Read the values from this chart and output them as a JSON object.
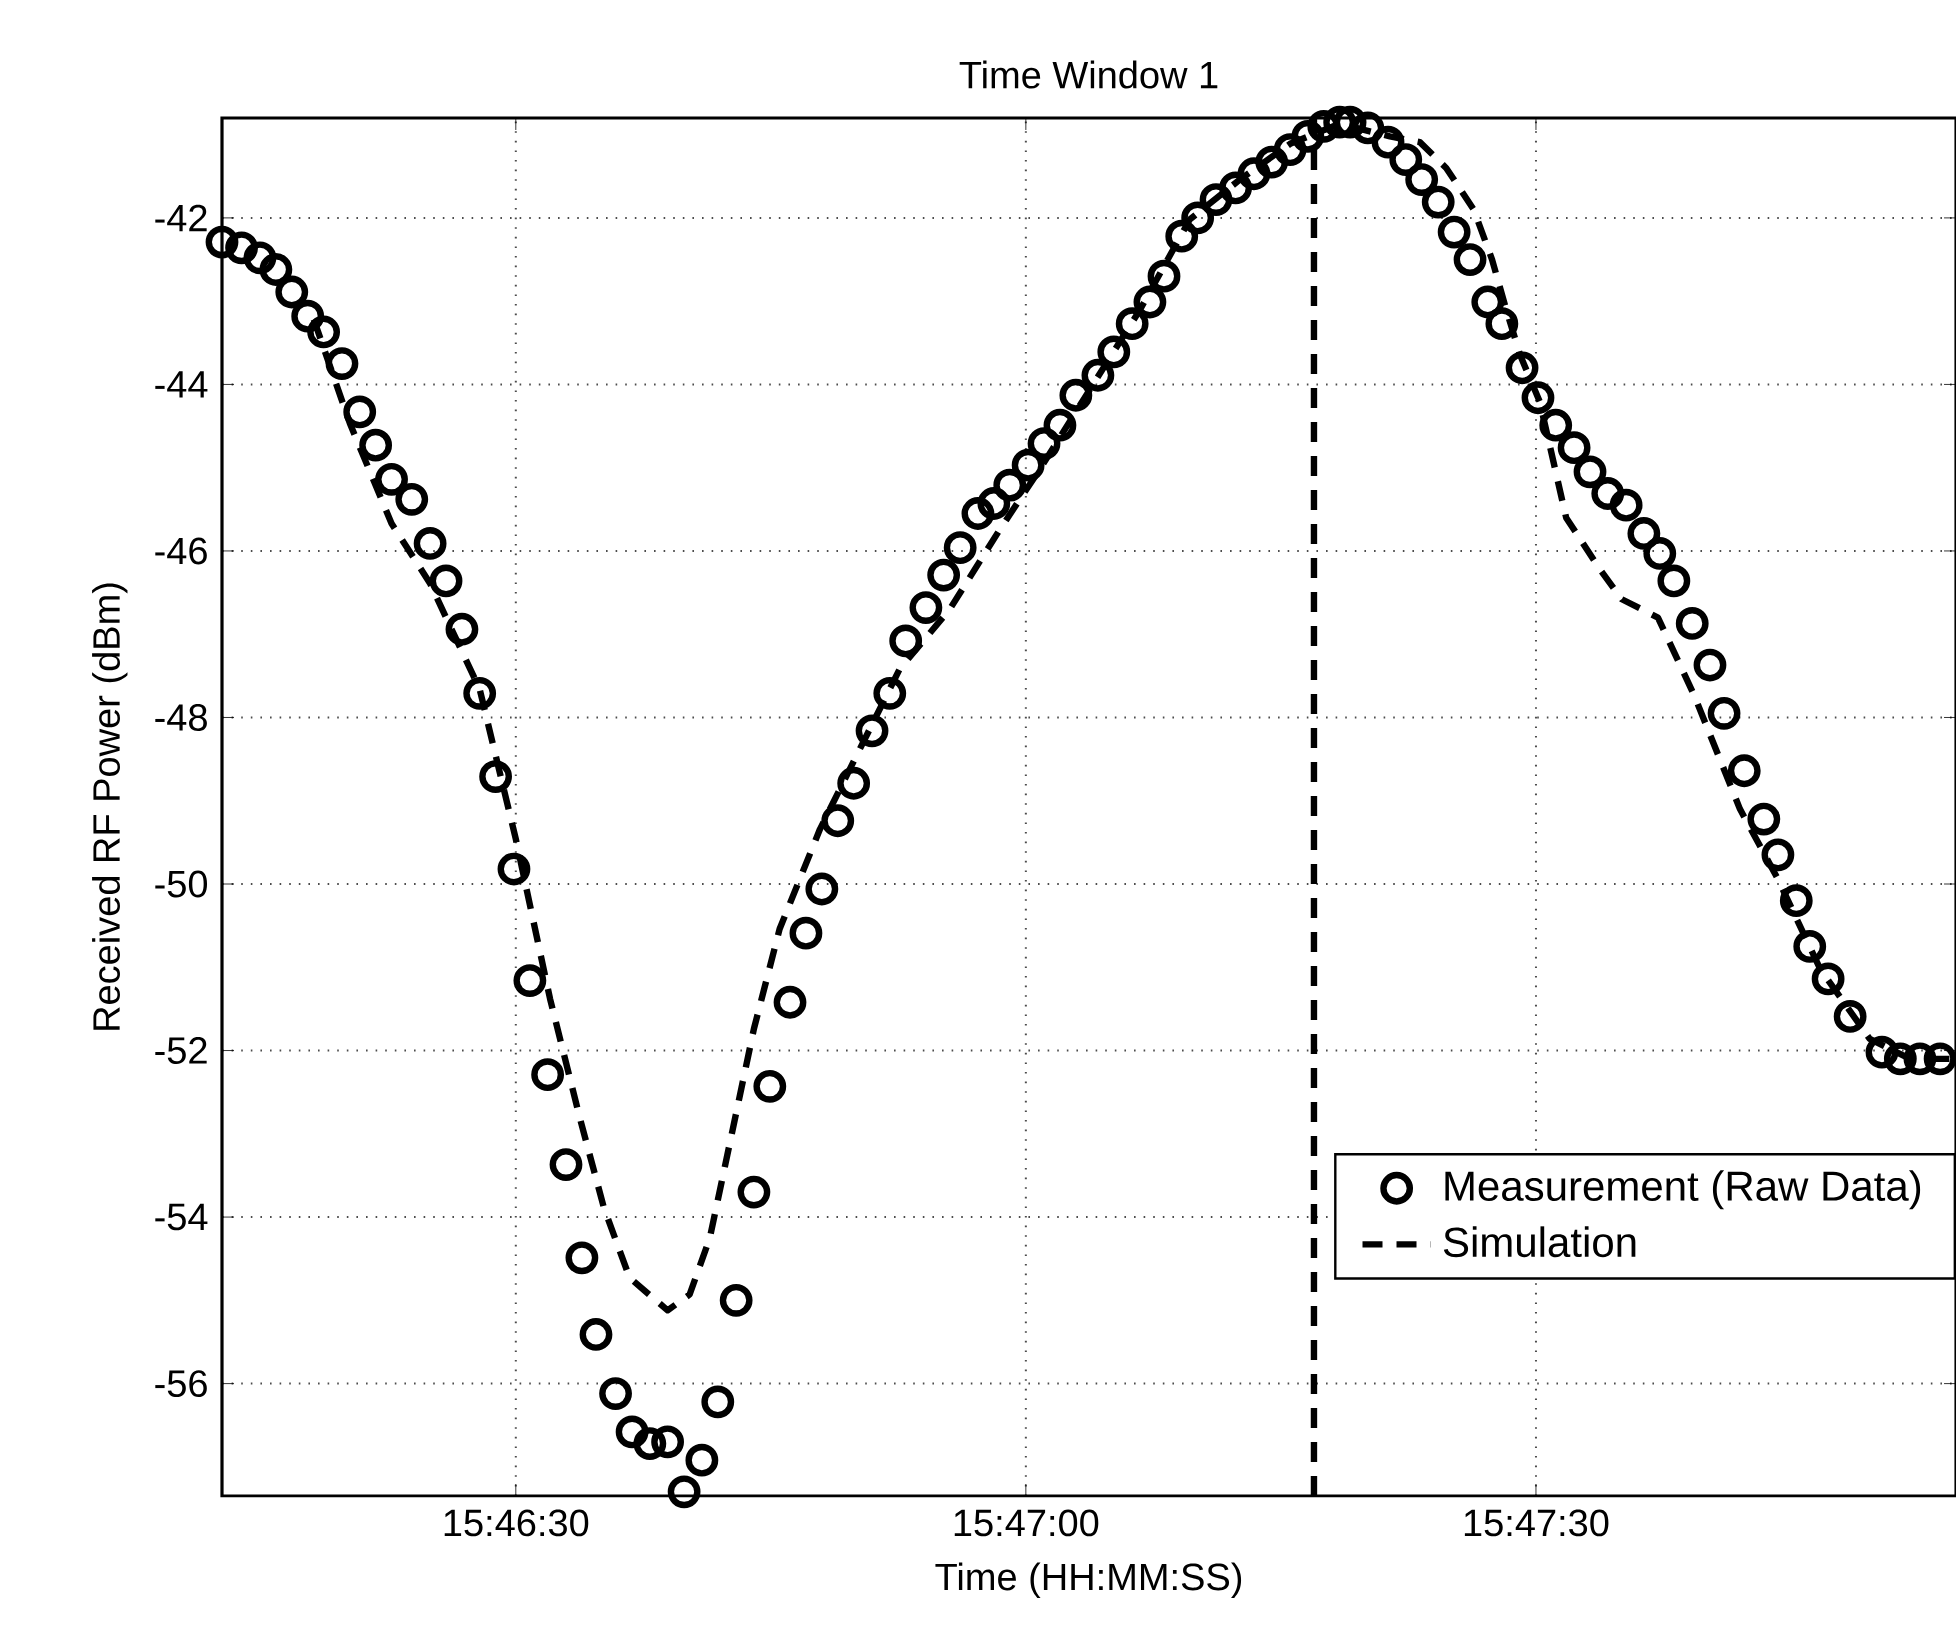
{
  "chart_data": {
    "type": "scatter",
    "title": "Time Window 1",
    "xlabel": "Time (HH:MM:SS)",
    "ylabel": "Received RF Power (dBm)",
    "xlim": [
      15.7702,
      15.79853
    ],
    "ylim": [
      -57.35,
      -40.8
    ],
    "xticks": [
      {
        "value": 15.775,
        "label": "15:46:30"
      },
      {
        "value": 15.783333,
        "label": "15:47:00"
      },
      {
        "value": 15.791667,
        "label": "15:47:30"
      }
    ],
    "yticks": [
      -56,
      -54,
      -52,
      -50,
      -48,
      -46,
      -44,
      -42
    ],
    "grid": true,
    "legend": "bottom right",
    "ref_lines": [
      {
        "axis": "x",
        "value": 15.78804,
        "color": "#000000",
        "line_style": "dashed"
      }
    ],
    "series": [
      {
        "name": "Measurement (Raw Data)",
        "marker": "circle",
        "color": "#000000",
        "x": [
          15.7702,
          15.77052,
          15.77082,
          15.77108,
          15.77134,
          15.7716,
          15.77186,
          15.77216,
          15.77245,
          15.77271,
          15.77297,
          15.7733,
          15.7736,
          15.77386,
          15.77412,
          15.77441,
          15.77467,
          15.77497,
          15.77523,
          15.77552,
          15.77582,
          15.77608,
          15.77631,
          15.77663,
          15.7769,
          15.77719,
          15.77748,
          15.77775,
          15.77804,
          15.7783,
          15.7786,
          15.77889,
          15.77915,
          15.77948,
          15.77974,
          15.78,
          15.78026,
          15.78052,
          15.78082,
          15.78111,
          15.78137,
          15.7817,
          15.78199,
          15.78226,
          15.78255,
          15.78281,
          15.78307,
          15.78337,
          15.78363,
          15.78389,
          15.78415,
          15.78451,
          15.78477,
          15.78507,
          15.78536,
          15.78559,
          15.78588,
          15.78614,
          15.78644,
          15.78676,
          15.78706,
          15.78735,
          15.78765,
          15.78794,
          15.7882,
          15.78846,
          15.78863,
          15.78892,
          15.78925,
          15.78954,
          15.7898,
          15.79007,
          15.79033,
          15.79059,
          15.79088,
          15.79111,
          15.79144,
          15.7917,
          15.79199,
          15.79229,
          15.79255,
          15.79284,
          15.79314,
          15.79343,
          15.79369,
          15.79392,
          15.79422,
          15.79451,
          15.79474,
          15.79507,
          15.79539,
          15.79562,
          15.79592,
          15.79614,
          15.79644,
          15.7968,
          15.79732,
          15.79762,
          15.79794,
          15.79827
        ],
        "values": [
          -42.29,
          -42.36,
          -42.48,
          -42.62,
          -42.89,
          -43.18,
          -43.37,
          -43.75,
          -44.33,
          -44.73,
          -45.14,
          -45.38,
          -45.91,
          -46.36,
          -46.94,
          -47.71,
          -48.71,
          -49.82,
          -51.16,
          -52.29,
          -53.37,
          -54.49,
          -55.41,
          -56.12,
          -56.58,
          -56.72,
          -56.7,
          -57.3,
          -56.92,
          -56.22,
          -55.0,
          -53.7,
          -52.43,
          -51.42,
          -50.59,
          -50.06,
          -49.24,
          -48.79,
          -48.16,
          -47.71,
          -47.08,
          -46.68,
          -46.29,
          -45.96,
          -45.55,
          -45.43,
          -45.21,
          -44.97,
          -44.71,
          -44.49,
          -44.13,
          -43.89,
          -43.61,
          -43.27,
          -43.01,
          -42.7,
          -42.22,
          -42.0,
          -41.78,
          -41.64,
          -41.47,
          -41.33,
          -41.18,
          -41.02,
          -40.9,
          -40.85,
          -40.85,
          -40.92,
          -41.09,
          -41.3,
          -41.54,
          -41.81,
          -42.17,
          -42.5,
          -43.01,
          -43.27,
          -43.8,
          -44.16,
          -44.49,
          -44.76,
          -45.05,
          -45.31,
          -45.45,
          -45.79,
          -46.03,
          -46.36,
          -46.87,
          -47.37,
          -47.95,
          -48.64,
          -49.22,
          -49.65,
          -50.2,
          -50.75,
          -51.14,
          -51.59,
          -52.02,
          -52.1,
          -52.1,
          -52.1
        ]
      },
      {
        "name": "Simulation",
        "type": "line",
        "line_style": "dashed",
        "marker": "none",
        "color": "#000000",
        "x": [
          15.7717,
          15.77229,
          15.77297,
          15.7736,
          15.77441,
          15.775,
          15.77556,
          15.77605,
          15.77644,
          15.77686,
          15.77748,
          15.77784,
          15.77817,
          15.7785,
          15.77889,
          15.77931,
          15.77997,
          15.78062,
          15.78127,
          15.78209,
          15.78291,
          15.78356,
          15.78438,
          15.7852,
          15.78601,
          15.78683,
          15.78765,
          15.78846,
          15.78928,
          15.78977,
          15.7902,
          15.79065,
          15.79095,
          15.79118,
          15.79141,
          15.79173,
          15.79216,
          15.79271,
          15.79307,
          15.79366,
          15.79425,
          15.795,
          15.79562,
          15.79631,
          15.79712,
          15.79778,
          15.79843
        ],
        "values": [
          -43.22,
          -44.47,
          -45.67,
          -46.39,
          -47.66,
          -49.46,
          -51.38,
          -52.82,
          -53.89,
          -54.73,
          -55.12,
          -54.93,
          -54.25,
          -53.1,
          -51.74,
          -50.54,
          -49.34,
          -48.38,
          -47.42,
          -46.7,
          -45.74,
          -45.02,
          -44.06,
          -43.1,
          -42.02,
          -41.54,
          -41.11,
          -40.87,
          -41.02,
          -41.09,
          -41.4,
          -41.9,
          -42.5,
          -43.1,
          -43.65,
          -44.21,
          -45.6,
          -46.22,
          -46.58,
          -46.8,
          -47.73,
          -49.1,
          -49.94,
          -51.02,
          -51.86,
          -52.1,
          -52.1
        ]
      }
    ]
  }
}
